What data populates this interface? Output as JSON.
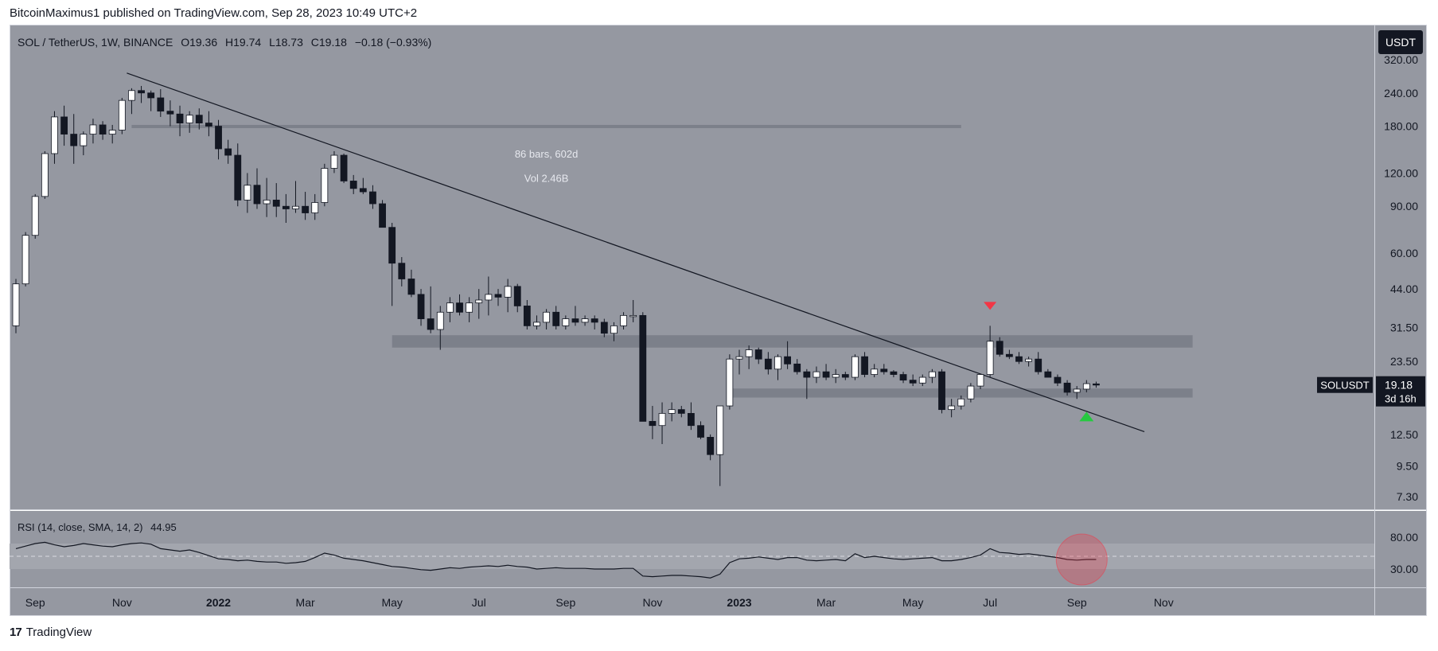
{
  "header": {
    "published_line": "BitcoinMaximus1 published on TradingView.com, Sep 28, 2023 10:49 UTC+2"
  },
  "footer": {
    "brand": "TradingView",
    "logo_text": "17"
  },
  "colors": {
    "panel_bg": "#9598a1",
    "border": "#d1d4dc",
    "up_body": "#ffffff",
    "down_body": "#131722",
    "wick": "#131722",
    "zone": "#787b86",
    "trendline": "#131722",
    "red_marker": "#f23645",
    "green_marker": "#26c940",
    "rsi_line": "#131722",
    "rsi_circle": "#f23645"
  },
  "chart_data": {
    "type": "candlestick",
    "title": "SOL / TetherUS, 1W, BINANCE",
    "ohlc_legend": {
      "symbol": "SOL / TetherUS, 1W, BINANCE",
      "o": "O19.36",
      "h": "H19.74",
      "l": "L18.73",
      "c": "C19.18",
      "change": "−0.18 (−0.93%)"
    },
    "currency_button": "USDT",
    "price_axis_ticks": [
      {
        "label": "320.00",
        "value": 320
      },
      {
        "label": "240.00",
        "value": 240
      },
      {
        "label": "180.00",
        "value": 180
      },
      {
        "label": "120.00",
        "value": 120
      },
      {
        "label": "90.00",
        "value": 90
      },
      {
        "label": "60.00",
        "value": 60
      },
      {
        "label": "44.00",
        "value": 44
      },
      {
        "label": "31.50",
        "value": 31.5
      },
      {
        "label": "23.50",
        "value": 23.5
      },
      {
        "label": "12.50",
        "value": 12.5
      },
      {
        "label": "9.50",
        "value": 9.5
      },
      {
        "label": "7.30",
        "value": 7.3
      }
    ],
    "time_axis_ticks": [
      {
        "label": "Sep",
        "week": 2
      },
      {
        "label": "Nov",
        "week": 11
      },
      {
        "label": "2022",
        "week": 21,
        "bold": true
      },
      {
        "label": "Mar",
        "week": 30
      },
      {
        "label": "May",
        "week": 39
      },
      {
        "label": "Jul",
        "week": 48
      },
      {
        "label": "Sep",
        "week": 57
      },
      {
        "label": "Nov",
        "week": 66
      },
      {
        "label": "2023",
        "week": 75,
        "bold": true
      },
      {
        "label": "Mar",
        "week": 84
      },
      {
        "label": "May",
        "week": 93
      },
      {
        "label": "Jul",
        "week": 101
      },
      {
        "label": "Sep",
        "week": 110
      },
      {
        "label": "Nov",
        "week": 119
      }
    ],
    "candles": [
      [
        0,
        32,
        48,
        30,
        46
      ],
      [
        1,
        46,
        72,
        45,
        70
      ],
      [
        2,
        70,
        100,
        68,
        98
      ],
      [
        3,
        98,
        145,
        96,
        142
      ],
      [
        4,
        142,
        205,
        130,
        195
      ],
      [
        5,
        195,
        215,
        152,
        168
      ],
      [
        6,
        168,
        200,
        130,
        152
      ],
      [
        7,
        152,
        172,
        140,
        168
      ],
      [
        8,
        168,
        192,
        155,
        182
      ],
      [
        9,
        182,
        188,
        160,
        168
      ],
      [
        10,
        168,
        182,
        155,
        174
      ],
      [
        11,
        174,
        230,
        168,
        225
      ],
      [
        12,
        225,
        250,
        200,
        245
      ],
      [
        13,
        245,
        255,
        220,
        240
      ],
      [
        14,
        240,
        245,
        205,
        230
      ],
      [
        15,
        230,
        248,
        195,
        205
      ],
      [
        16,
        205,
        225,
        180,
        200
      ],
      [
        17,
        200,
        215,
        165,
        185
      ],
      [
        18,
        185,
        205,
        170,
        198
      ],
      [
        19,
        198,
        210,
        175,
        185
      ],
      [
        20,
        185,
        205,
        165,
        180
      ],
      [
        21,
        180,
        190,
        135,
        148
      ],
      [
        22,
        148,
        160,
        130,
        140
      ],
      [
        23,
        140,
        155,
        90,
        95
      ],
      [
        24,
        95,
        120,
        85,
        108
      ],
      [
        25,
        108,
        125,
        88,
        92
      ],
      [
        26,
        92,
        115,
        82,
        95
      ],
      [
        27,
        95,
        110,
        82,
        90
      ],
      [
        28,
        90,
        100,
        78,
        88
      ],
      [
        29,
        88,
        112,
        85,
        90
      ],
      [
        30,
        90,
        102,
        80,
        85
      ],
      [
        31,
        85,
        100,
        80,
        93
      ],
      [
        32,
        93,
        130,
        90,
        125
      ],
      [
        33,
        125,
        145,
        120,
        140
      ],
      [
        34,
        140,
        142,
        110,
        112
      ],
      [
        35,
        112,
        118,
        100,
        105
      ],
      [
        36,
        105,
        115,
        100,
        102
      ],
      [
        37,
        102,
        108,
        88,
        92
      ],
      [
        38,
        92,
        95,
        75,
        75
      ],
      [
        39,
        75,
        78,
        38,
        55
      ],
      [
        40,
        55,
        58,
        45,
        48
      ],
      [
        41,
        48,
        52,
        41,
        42
      ],
      [
        42,
        42,
        44,
        32,
        34
      ],
      [
        43,
        34,
        45,
        30,
        31
      ],
      [
        44,
        31,
        38,
        26,
        36
      ],
      [
        45,
        36,
        41,
        33,
        39
      ],
      [
        46,
        39,
        42,
        35,
        36
      ],
      [
        47,
        36,
        41,
        33,
        39
      ],
      [
        48,
        39,
        44,
        34,
        40
      ],
      [
        49,
        40,
        49,
        35,
        42
      ],
      [
        50,
        42,
        44,
        38,
        41
      ],
      [
        51,
        41,
        48,
        36,
        45
      ],
      [
        52,
        45,
        46,
        36,
        38
      ],
      [
        53,
        38,
        40,
        31,
        32
      ],
      [
        54,
        32,
        35,
        31,
        33
      ],
      [
        55,
        33,
        37,
        31,
        36
      ],
      [
        56,
        36,
        38,
        31,
        32
      ],
      [
        57,
        32,
        35,
        31,
        34
      ],
      [
        58,
        34,
        38,
        32,
        33
      ],
      [
        59,
        33,
        35,
        32,
        34
      ],
      [
        60,
        34,
        35,
        31,
        33
      ],
      [
        61,
        33,
        34,
        29,
        30
      ],
      [
        62,
        30,
        33,
        28,
        32
      ],
      [
        63,
        32,
        36,
        31,
        35
      ],
      [
        64,
        35,
        40,
        33,
        35
      ],
      [
        65,
        35,
        36,
        14,
        14
      ],
      [
        66,
        14,
        16,
        12,
        13.5
      ],
      [
        67,
        13.5,
        16.5,
        11.5,
        15
      ],
      [
        68,
        15,
        16.5,
        14,
        15.5
      ],
      [
        69,
        15.5,
        16,
        14.5,
        15
      ],
      [
        70,
        15,
        16.5,
        13,
        13.5
      ],
      [
        71,
        13.5,
        14,
        12,
        12.2
      ],
      [
        72,
        12.2,
        12.5,
        10,
        10.5
      ],
      [
        73,
        10.5,
        16,
        8,
        16
      ],
      [
        74,
        16,
        25,
        15.5,
        24
      ],
      [
        75,
        24,
        26,
        21,
        24.5
      ],
      [
        76,
        24.5,
        27,
        22,
        26
      ],
      [
        77,
        26,
        26.5,
        23,
        24
      ],
      [
        78,
        24,
        25.5,
        21,
        22
      ],
      [
        79,
        22,
        25,
        20,
        24.5
      ],
      [
        80,
        24.5,
        28,
        22,
        23
      ],
      [
        81,
        23,
        24,
        21,
        21.5
      ],
      [
        82,
        21.5,
        22,
        17,
        20.5
      ],
      [
        83,
        20.5,
        22.5,
        19.5,
        21.5
      ],
      [
        84,
        21.5,
        23,
        20,
        20.5
      ],
      [
        85,
        20.5,
        22,
        19.5,
        21
      ],
      [
        86,
        21,
        21.5,
        20,
        20.5
      ],
      [
        87,
        20.5,
        25,
        20,
        24.5
      ],
      [
        88,
        24.5,
        25.5,
        20.5,
        21
      ],
      [
        89,
        21,
        23,
        20.5,
        22
      ],
      [
        90,
        22,
        23,
        21,
        21.5
      ],
      [
        91,
        21.5,
        21.8,
        20.5,
        21
      ],
      [
        92,
        21,
        21.5,
        19.5,
        20
      ],
      [
        93,
        20,
        21,
        19,
        19.5
      ],
      [
        94,
        19.5,
        21,
        19,
        20.5
      ],
      [
        95,
        20.5,
        22,
        19.5,
        21.5
      ],
      [
        96,
        21.5,
        22,
        15,
        15.5
      ],
      [
        97,
        15.5,
        17,
        14.5,
        16
      ],
      [
        98,
        16,
        17.5,
        15.5,
        17
      ],
      [
        99,
        17,
        19.5,
        16.5,
        19
      ],
      [
        100,
        19,
        21,
        18.5,
        21
      ],
      [
        101,
        21,
        32,
        20.5,
        28
      ],
      [
        102,
        28,
        29,
        24.5,
        25
      ],
      [
        103,
        25,
        26,
        24,
        24.5
      ],
      [
        104,
        24.5,
        25.5,
        23,
        23.5
      ],
      [
        105,
        23.5,
        24.5,
        22.5,
        24
      ],
      [
        106,
        24,
        25.5,
        21,
        21.5
      ],
      [
        107,
        21.5,
        22,
        20.5,
        20.5
      ],
      [
        108,
        20.5,
        21,
        19,
        19.5
      ],
      [
        109,
        19.5,
        20,
        17.5,
        18
      ],
      [
        110,
        18,
        19,
        17,
        18.5
      ],
      [
        111,
        18.5,
        20,
        18,
        19.4
      ],
      [
        112,
        19.36,
        19.74,
        18.73,
        19.18
      ]
    ],
    "trendline": {
      "from": {
        "week": 11.5,
        "price": 285
      },
      "to": {
        "week": 117,
        "price": 12.8
      }
    },
    "zones": [
      {
        "from_week": 12,
        "to_week": 98,
        "low": 178,
        "high": 182
      },
      {
        "from_week": 39,
        "to_week": 122,
        "low": 26.5,
        "high": 29.5
      },
      {
        "from_week": 74,
        "to_week": 122,
        "low": 17.2,
        "high": 18.6
      }
    ],
    "measure": {
      "bars_text": "86 bars, 602d",
      "vol_text": "Vol 2.46B",
      "week": 55,
      "price_bars": 142,
      "price_vol": 115
    },
    "markers": [
      {
        "kind": "arrow-down",
        "week": 101,
        "price": 38,
        "color_key": "red_marker"
      },
      {
        "kind": "arrow-up",
        "week": 111,
        "price": 14.6,
        "color_key": "green_marker"
      }
    ],
    "last_price": {
      "symbol": "SOLUSDT",
      "price": "19.18",
      "countdown": "3d 16h",
      "value": 19.18
    },
    "rsi": {
      "label": "RSI (14, close, SMA, 14, 2)",
      "value_text": "44.95",
      "axis_ticks": [
        {
          "label": "80.00",
          "value": 80
        },
        {
          "label": "30.00",
          "value": 30
        }
      ],
      "band_upper": 70,
      "band_lower": 30,
      "mid_line": 50,
      "values": [
        62,
        66,
        70,
        72,
        68,
        65,
        67,
        70,
        68,
        66,
        65,
        68,
        70,
        71,
        69,
        62,
        60,
        58,
        60,
        56,
        51,
        46,
        45,
        43,
        44,
        42,
        41,
        41,
        39,
        40,
        42,
        48,
        55,
        52,
        47,
        45,
        43,
        40,
        37,
        34,
        33,
        31,
        29,
        28,
        30,
        32,
        31,
        33,
        34,
        35,
        34,
        36,
        34,
        33,
        30,
        31,
        32,
        31,
        31,
        31,
        30,
        30,
        30,
        31,
        31,
        19,
        18,
        19,
        20,
        20,
        19,
        18,
        16,
        22,
        40,
        46,
        47,
        49,
        47,
        45,
        48,
        48,
        44,
        43,
        44,
        45,
        43,
        54,
        48,
        50,
        48,
        46,
        45,
        46,
        47,
        48,
        43,
        43,
        45,
        48,
        52,
        62,
        56,
        55,
        53,
        54,
        52,
        50,
        48,
        45,
        44,
        45,
        45
      ],
      "circle": {
        "week": 110.5,
        "value": 45
      }
    }
  }
}
